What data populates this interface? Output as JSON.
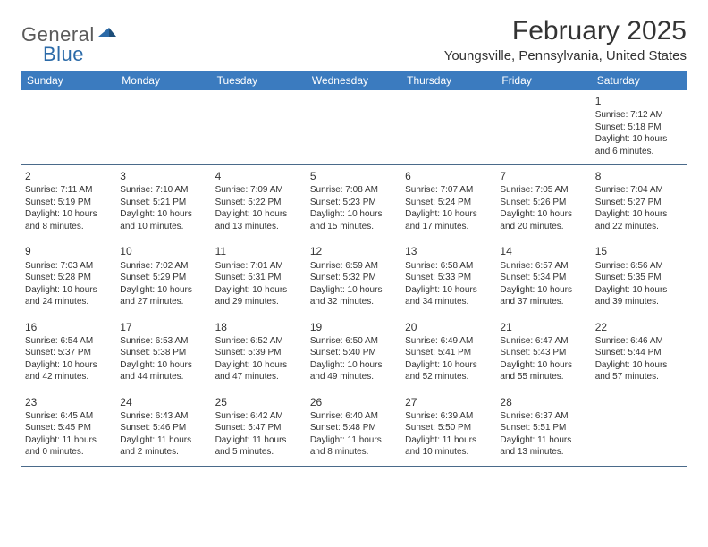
{
  "logo": {
    "text_general": "General",
    "text_blue": "Blue",
    "mark_color": "#2b6aa8"
  },
  "header": {
    "month_title": "February 2025",
    "location": "Youngsville, Pennsylvania, United States"
  },
  "colors": {
    "header_bar": "#3b7bbf",
    "header_text": "#ffffff",
    "border": "#4a6a8a",
    "text": "#333333",
    "logo_gray": "#5a5a5a",
    "logo_blue": "#2b6aa8",
    "background": "#ffffff"
  },
  "weekdays": [
    "Sunday",
    "Monday",
    "Tuesday",
    "Wednesday",
    "Thursday",
    "Friday",
    "Saturday"
  ],
  "weeks": [
    [
      {
        "day": "",
        "sunrise": "",
        "sunset": "",
        "daylight": ""
      },
      {
        "day": "",
        "sunrise": "",
        "sunset": "",
        "daylight": ""
      },
      {
        "day": "",
        "sunrise": "",
        "sunset": "",
        "daylight": ""
      },
      {
        "day": "",
        "sunrise": "",
        "sunset": "",
        "daylight": ""
      },
      {
        "day": "",
        "sunrise": "",
        "sunset": "",
        "daylight": ""
      },
      {
        "day": "",
        "sunrise": "",
        "sunset": "",
        "daylight": ""
      },
      {
        "day": "1",
        "sunrise": "Sunrise: 7:12 AM",
        "sunset": "Sunset: 5:18 PM",
        "daylight": "Daylight: 10 hours and 6 minutes."
      }
    ],
    [
      {
        "day": "2",
        "sunrise": "Sunrise: 7:11 AM",
        "sunset": "Sunset: 5:19 PM",
        "daylight": "Daylight: 10 hours and 8 minutes."
      },
      {
        "day": "3",
        "sunrise": "Sunrise: 7:10 AM",
        "sunset": "Sunset: 5:21 PM",
        "daylight": "Daylight: 10 hours and 10 minutes."
      },
      {
        "day": "4",
        "sunrise": "Sunrise: 7:09 AM",
        "sunset": "Sunset: 5:22 PM",
        "daylight": "Daylight: 10 hours and 13 minutes."
      },
      {
        "day": "5",
        "sunrise": "Sunrise: 7:08 AM",
        "sunset": "Sunset: 5:23 PM",
        "daylight": "Daylight: 10 hours and 15 minutes."
      },
      {
        "day": "6",
        "sunrise": "Sunrise: 7:07 AM",
        "sunset": "Sunset: 5:24 PM",
        "daylight": "Daylight: 10 hours and 17 minutes."
      },
      {
        "day": "7",
        "sunrise": "Sunrise: 7:05 AM",
        "sunset": "Sunset: 5:26 PM",
        "daylight": "Daylight: 10 hours and 20 minutes."
      },
      {
        "day": "8",
        "sunrise": "Sunrise: 7:04 AM",
        "sunset": "Sunset: 5:27 PM",
        "daylight": "Daylight: 10 hours and 22 minutes."
      }
    ],
    [
      {
        "day": "9",
        "sunrise": "Sunrise: 7:03 AM",
        "sunset": "Sunset: 5:28 PM",
        "daylight": "Daylight: 10 hours and 24 minutes."
      },
      {
        "day": "10",
        "sunrise": "Sunrise: 7:02 AM",
        "sunset": "Sunset: 5:29 PM",
        "daylight": "Daylight: 10 hours and 27 minutes."
      },
      {
        "day": "11",
        "sunrise": "Sunrise: 7:01 AM",
        "sunset": "Sunset: 5:31 PM",
        "daylight": "Daylight: 10 hours and 29 minutes."
      },
      {
        "day": "12",
        "sunrise": "Sunrise: 6:59 AM",
        "sunset": "Sunset: 5:32 PM",
        "daylight": "Daylight: 10 hours and 32 minutes."
      },
      {
        "day": "13",
        "sunrise": "Sunrise: 6:58 AM",
        "sunset": "Sunset: 5:33 PM",
        "daylight": "Daylight: 10 hours and 34 minutes."
      },
      {
        "day": "14",
        "sunrise": "Sunrise: 6:57 AM",
        "sunset": "Sunset: 5:34 PM",
        "daylight": "Daylight: 10 hours and 37 minutes."
      },
      {
        "day": "15",
        "sunrise": "Sunrise: 6:56 AM",
        "sunset": "Sunset: 5:35 PM",
        "daylight": "Daylight: 10 hours and 39 minutes."
      }
    ],
    [
      {
        "day": "16",
        "sunrise": "Sunrise: 6:54 AM",
        "sunset": "Sunset: 5:37 PM",
        "daylight": "Daylight: 10 hours and 42 minutes."
      },
      {
        "day": "17",
        "sunrise": "Sunrise: 6:53 AM",
        "sunset": "Sunset: 5:38 PM",
        "daylight": "Daylight: 10 hours and 44 minutes."
      },
      {
        "day": "18",
        "sunrise": "Sunrise: 6:52 AM",
        "sunset": "Sunset: 5:39 PM",
        "daylight": "Daylight: 10 hours and 47 minutes."
      },
      {
        "day": "19",
        "sunrise": "Sunrise: 6:50 AM",
        "sunset": "Sunset: 5:40 PM",
        "daylight": "Daylight: 10 hours and 49 minutes."
      },
      {
        "day": "20",
        "sunrise": "Sunrise: 6:49 AM",
        "sunset": "Sunset: 5:41 PM",
        "daylight": "Daylight: 10 hours and 52 minutes."
      },
      {
        "day": "21",
        "sunrise": "Sunrise: 6:47 AM",
        "sunset": "Sunset: 5:43 PM",
        "daylight": "Daylight: 10 hours and 55 minutes."
      },
      {
        "day": "22",
        "sunrise": "Sunrise: 6:46 AM",
        "sunset": "Sunset: 5:44 PM",
        "daylight": "Daylight: 10 hours and 57 minutes."
      }
    ],
    [
      {
        "day": "23",
        "sunrise": "Sunrise: 6:45 AM",
        "sunset": "Sunset: 5:45 PM",
        "daylight": "Daylight: 11 hours and 0 minutes."
      },
      {
        "day": "24",
        "sunrise": "Sunrise: 6:43 AM",
        "sunset": "Sunset: 5:46 PM",
        "daylight": "Daylight: 11 hours and 2 minutes."
      },
      {
        "day": "25",
        "sunrise": "Sunrise: 6:42 AM",
        "sunset": "Sunset: 5:47 PM",
        "daylight": "Daylight: 11 hours and 5 minutes."
      },
      {
        "day": "26",
        "sunrise": "Sunrise: 6:40 AM",
        "sunset": "Sunset: 5:48 PM",
        "daylight": "Daylight: 11 hours and 8 minutes."
      },
      {
        "day": "27",
        "sunrise": "Sunrise: 6:39 AM",
        "sunset": "Sunset: 5:50 PM",
        "daylight": "Daylight: 11 hours and 10 minutes."
      },
      {
        "day": "28",
        "sunrise": "Sunrise: 6:37 AM",
        "sunset": "Sunset: 5:51 PM",
        "daylight": "Daylight: 11 hours and 13 minutes."
      },
      {
        "day": "",
        "sunrise": "",
        "sunset": "",
        "daylight": ""
      }
    ]
  ]
}
